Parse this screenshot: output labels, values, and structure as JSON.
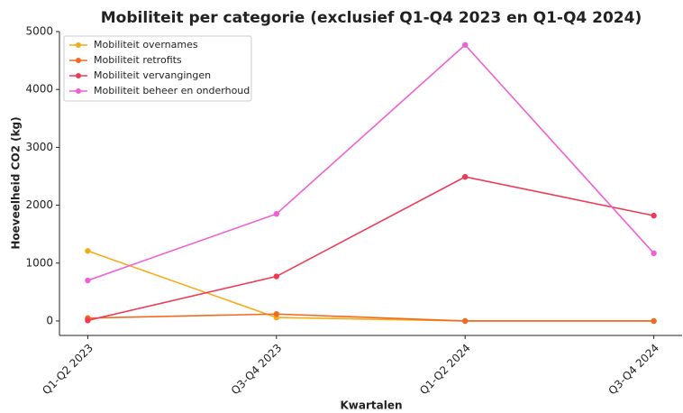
{
  "chart_data": {
    "type": "line",
    "title": "Mobiliteit per categorie (exclusief Q1-Q4 2023 en Q1-Q4 2024)",
    "x_label": "Kwartalen",
    "y_label": "Hoeveelheid CO2 (kg)",
    "categories": [
      "Q1-Q2 2023",
      "Q3-Q4 2023",
      "Q1-Q2 2024",
      "Q3-Q4 2024"
    ],
    "series": [
      {
        "name": "Mobiliteit overnames",
        "color": "#f5ac14",
        "values": [
          1210,
          60,
          0,
          0
        ]
      },
      {
        "name": "Mobiliteit retrofits",
        "color": "#f06a22",
        "values": [
          50,
          120,
          0,
          0
        ]
      },
      {
        "name": "Mobiliteit vervangingen",
        "color": "#ee3b55",
        "values": [
          10,
          770,
          2490,
          1820
        ]
      },
      {
        "name": "Mobiliteit beheer en onderhoud",
        "color": "#f05fd3",
        "values": [
          700,
          1850,
          4770,
          1170
        ]
      }
    ],
    "ylim": [
      -250,
      5000
    ],
    "yticks": [
      0,
      1000,
      2000,
      3000,
      4000,
      5000
    ],
    "grid": false,
    "legend": "upper left"
  }
}
